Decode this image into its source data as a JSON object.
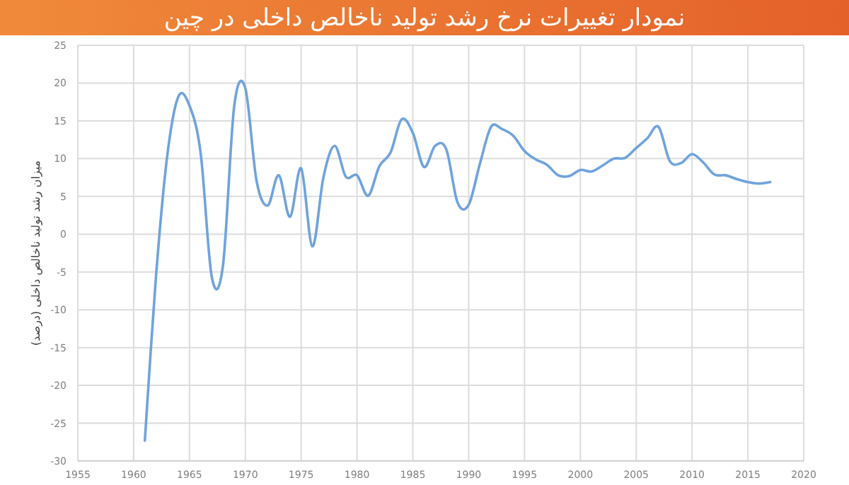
{
  "chart_data": {
    "type": "line",
    "title": "نمودار تغییرات نرخ رشد تولید ناخالص داخلی در چین",
    "ylabel": "میزان رشد تولید ناخالص داخلی (درصد)",
    "x": [
      1961,
      1962,
      1963,
      1964,
      1965,
      1966,
      1967,
      1968,
      1969,
      1970,
      1971,
      1972,
      1973,
      1974,
      1975,
      1976,
      1977,
      1978,
      1979,
      1980,
      1981,
      1982,
      1983,
      1984,
      1985,
      1986,
      1987,
      1988,
      1989,
      1990,
      1991,
      1992,
      1993,
      1994,
      1995,
      1996,
      1997,
      1998,
      1999,
      2000,
      2001,
      2002,
      2003,
      2004,
      2005,
      2006,
      2007,
      2008,
      2009,
      2010,
      2011,
      2012,
      2013,
      2014,
      2015,
      2016,
      2017
    ],
    "series": [
      {
        "color": "#6fa3dc",
        "values": [
          -27.3,
          -5.6,
          10.3,
          18.2,
          17.0,
          10.7,
          -5.7,
          -4.1,
          16.9,
          19.3,
          7.1,
          3.8,
          7.8,
          2.3,
          8.7,
          -1.6,
          7.6,
          11.7,
          7.6,
          7.8,
          5.1,
          9.0,
          10.8,
          15.2,
          13.4,
          8.9,
          11.7,
          11.2,
          4.2,
          3.9,
          9.3,
          14.2,
          13.9,
          13.0,
          11.0,
          9.9,
          9.2,
          7.8,
          7.7,
          8.5,
          8.3,
          9.1,
          10.0,
          10.1,
          11.4,
          12.7,
          14.2,
          9.7,
          9.4,
          10.6,
          9.5,
          7.9,
          7.8,
          7.3,
          6.9,
          6.7,
          6.9
        ]
      }
    ],
    "xlim": [
      1955,
      2020
    ],
    "xticks": [
      1955,
      1960,
      1965,
      1970,
      1975,
      1980,
      1985,
      1990,
      1995,
      2000,
      2005,
      2010,
      2015,
      2020
    ],
    "ylim": [
      -30,
      25
    ],
    "yticks": [
      -30,
      -25,
      -20,
      -15,
      -10,
      -5,
      0,
      5,
      10,
      15,
      20,
      25
    ],
    "grid": true,
    "marker": "none",
    "line_style": "solid"
  }
}
